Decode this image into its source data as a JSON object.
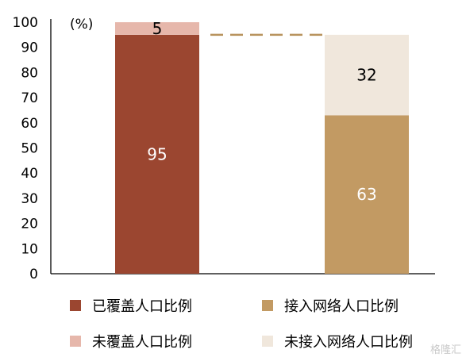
{
  "chart_data": {
    "type": "bar",
    "stacked": true,
    "unit_label": "(%)",
    "ylim": [
      0,
      100
    ],
    "y_ticks": [
      "0",
      "10",
      "20",
      "30",
      "40",
      "50",
      "60",
      "70",
      "80",
      "90",
      "100"
    ],
    "grid": false,
    "legend_position": "bottom",
    "stacks": [
      {
        "segments": [
          {
            "series": "已覆盖人口比例",
            "value": 95,
            "label": "95",
            "color": "#9b4630",
            "label_color": "#ffffff"
          },
          {
            "series": "未覆盖人口比例",
            "value": 5,
            "label": "5",
            "color": "#e6b7ab",
            "label_color": "#000000"
          }
        ]
      },
      {
        "segments": [
          {
            "series": "接入网络人口比例",
            "value": 63,
            "label": "63",
            "color": "#c29a63",
            "label_color": "#ffffff"
          },
          {
            "series": "未接入网络人口比例",
            "value": 32,
            "label": "32",
            "color": "#f0e7dc",
            "label_color": "#000000"
          }
        ]
      }
    ],
    "reference_line": {
      "value": 95,
      "color": "#b8935d",
      "style": "dashed"
    }
  },
  "legend": [
    {
      "label": "已覆盖人口比例",
      "color": "#9b4630"
    },
    {
      "label": "接入网络人口比例",
      "color": "#c29a63"
    },
    {
      "label": "未覆盖人口比例",
      "color": "#e6b7ab"
    },
    {
      "label": "未接入网络人口比例",
      "color": "#f0e7dc"
    }
  ],
  "watermark": "格隆汇"
}
